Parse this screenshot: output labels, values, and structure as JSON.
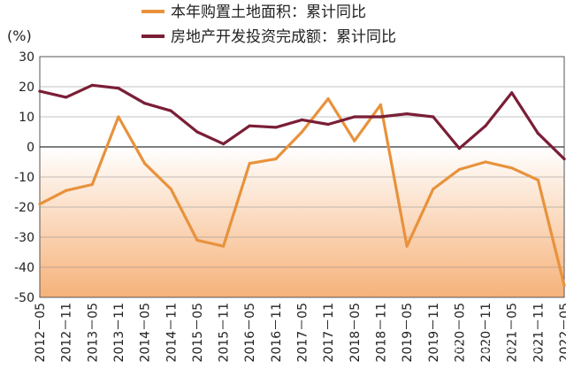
{
  "chart_data": {
    "type": "line",
    "unit_label": "(%)",
    "ylim": [
      -50,
      30
    ],
    "yticks": [
      30,
      20,
      10,
      0,
      -10,
      -20,
      -30,
      -40,
      -50
    ],
    "categories": [
      "2012-05",
      "2012-11",
      "2013-05",
      "2013-11",
      "2014-05",
      "2014-11",
      "2015-05",
      "2015-11",
      "2016-05",
      "2016-11",
      "2017-05",
      "2017-11",
      "2018-05",
      "2018-11",
      "2019-05",
      "2019-11",
      "2020-05",
      "2020-11",
      "2021-05",
      "2021-11",
      "2022-05"
    ],
    "tick_labels": [
      "2012－05",
      "2012－11",
      "2013－05",
      "2013－11",
      "2014－05",
      "2014－11",
      "2015－05",
      "2015－11",
      "2016－05",
      "2016－11",
      "2017－05",
      "2017－11",
      "2018－05",
      "2018－11",
      "2019－05",
      "2019－11",
      "2020－05",
      "2020－11",
      "2021－05",
      "2021－11",
      "2022－05"
    ],
    "series": [
      {
        "name": "本年购置土地面积：累计同比",
        "color": "#e8923c",
        "values": [
          -19,
          -14.5,
          -12.5,
          10,
          -5.5,
          -14,
          -31,
          -33,
          -5.5,
          -4,
          5,
          16,
          2,
          14,
          -33,
          -14,
          -7.5,
          -5,
          -7,
          -11,
          -46
        ]
      },
      {
        "name": "房地产开发投资完成额：累计同比",
        "color": "#7a1e36",
        "values": [
          18.5,
          16.5,
          20.5,
          19.5,
          14.5,
          12,
          5,
          1,
          7,
          6.5,
          9,
          7.5,
          10,
          10,
          11,
          10,
          -0.5,
          7,
          18,
          4.5,
          -4
        ]
      }
    ],
    "watermark": "知乎 @四眼卡卡"
  }
}
